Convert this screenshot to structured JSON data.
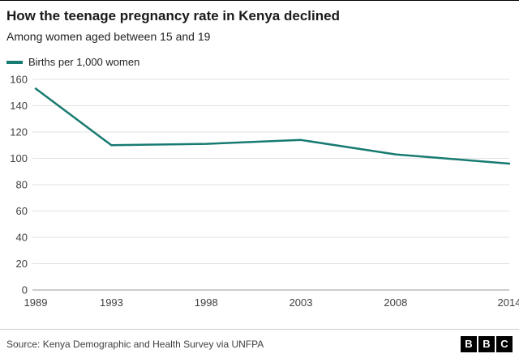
{
  "header": {
    "title": "How the teenage pregnancy rate in Kenya declined",
    "subtitle": "Among women aged between 15 and 19"
  },
  "legend": {
    "label": "Births per 1,000 women"
  },
  "chart_data": {
    "type": "line",
    "series_name": "Births per 1,000 women",
    "x": [
      1989,
      1993,
      1998,
      2003,
      2008,
      2014
    ],
    "values": [
      153,
      110,
      111,
      114,
      103,
      96
    ],
    "xlim": [
      1989,
      2014
    ],
    "xticks": [
      1989,
      1993,
      1998,
      2003,
      2008,
      2014
    ],
    "ylim": [
      0,
      160
    ],
    "ytick_step": 20,
    "grid": "horizontal",
    "legend_position": "top-left",
    "line_color": "#177B72"
  },
  "footer": {
    "source": "Source: Kenya Demographic and Health Survey via UNFPA",
    "logo_letters": [
      "B",
      "B",
      "C"
    ]
  },
  "colors": {
    "accent": "#177B72",
    "grid": "#e2e2e2",
    "axis_zero": "#999999",
    "tick_text": "#404040",
    "background": "#ffffff"
  }
}
